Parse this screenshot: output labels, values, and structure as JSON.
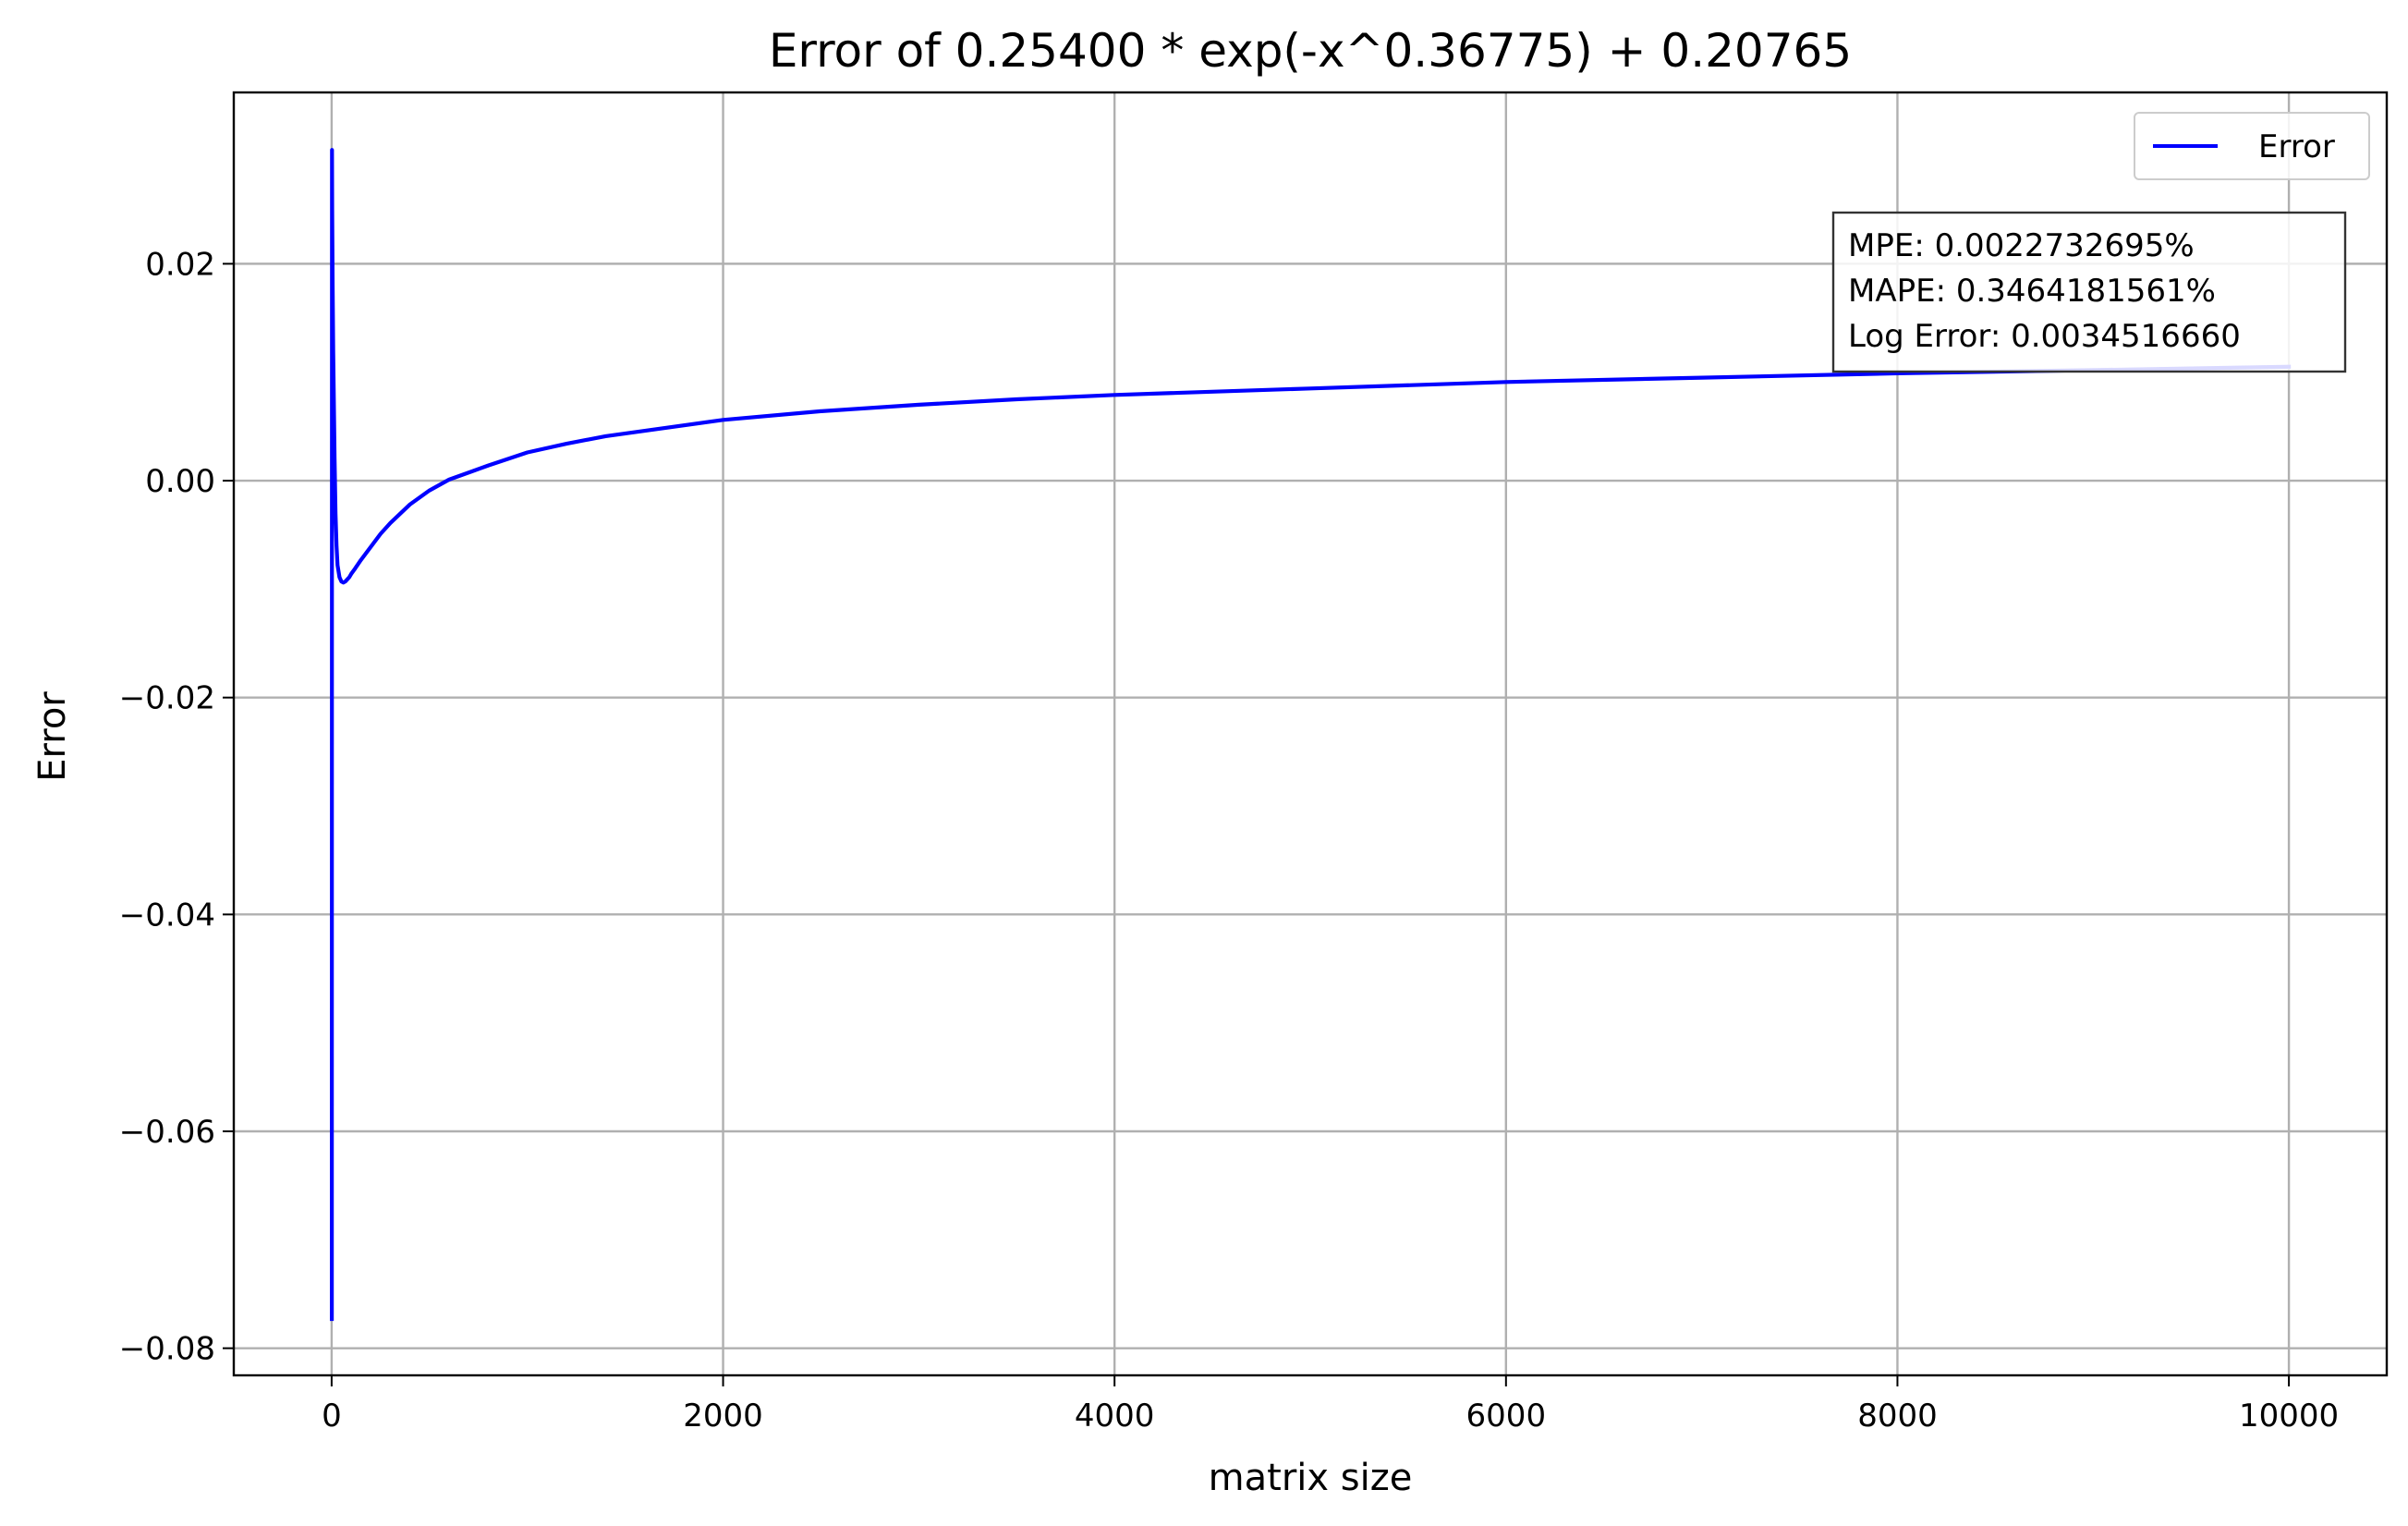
{
  "chart_data": {
    "type": "line",
    "title": "Error of 0.25400 * exp(-x^0.36775) + 0.20765",
    "xlabel": "matrix size",
    "ylabel": "Error",
    "xlim": [
      -500,
      10500
    ],
    "ylim": [
      -0.0825,
      0.0358
    ],
    "x_ticks": [
      0,
      2000,
      4000,
      6000,
      8000,
      10000
    ],
    "x_tick_labels": [
      "0",
      "2000",
      "4000",
      "6000",
      "8000",
      "10000"
    ],
    "y_ticks": [
      -0.08,
      -0.06,
      -0.04,
      -0.02,
      0.0,
      0.02
    ],
    "y_tick_labels": [
      "−0.08",
      "−0.06",
      "−0.04",
      "−0.02",
      "0.00",
      "0.02"
    ],
    "grid": true,
    "legend": {
      "position": "top-right",
      "entries": [
        "Error"
      ]
    },
    "series": [
      {
        "name": "Error",
        "color": "#0000ff",
        "x": [
          1,
          2,
          3,
          5,
          8,
          12,
          15,
          20,
          25,
          30,
          40,
          50,
          60,
          70,
          80,
          90,
          100,
          120,
          150,
          200,
          250,
          300,
          400,
          500,
          600,
          800,
          1000,
          1200,
          1400,
          1600,
          2000,
          2500,
          3000,
          3500,
          4000,
          5000,
          6000,
          7000,
          8000,
          9000,
          10000
        ],
        "y": [
          -0.0773,
          0.0305,
          0.025,
          0.018,
          0.012,
          0.006,
          0.002,
          -0.003,
          -0.006,
          -0.0078,
          -0.0089,
          -0.0093,
          -0.0094,
          -0.0093,
          -0.0091,
          -0.0089,
          -0.0086,
          -0.0081,
          -0.0073,
          -0.0061,
          -0.0049,
          -0.0039,
          -0.0022,
          -0.0009,
          0.0001,
          0.0014,
          0.0026,
          0.0034,
          0.0041,
          0.0046,
          0.0056,
          0.0064,
          0.007,
          0.0075,
          0.0079,
          0.0085,
          0.0091,
          0.0095,
          0.0099,
          0.0102,
          0.0105
        ]
      }
    ],
    "annotation": {
      "position": "top-right",
      "lines": [
        "MPE: 0.0022732695%",
        "MAPE: 0.3464181561%",
        "Log Error: 0.0034516660"
      ]
    }
  }
}
